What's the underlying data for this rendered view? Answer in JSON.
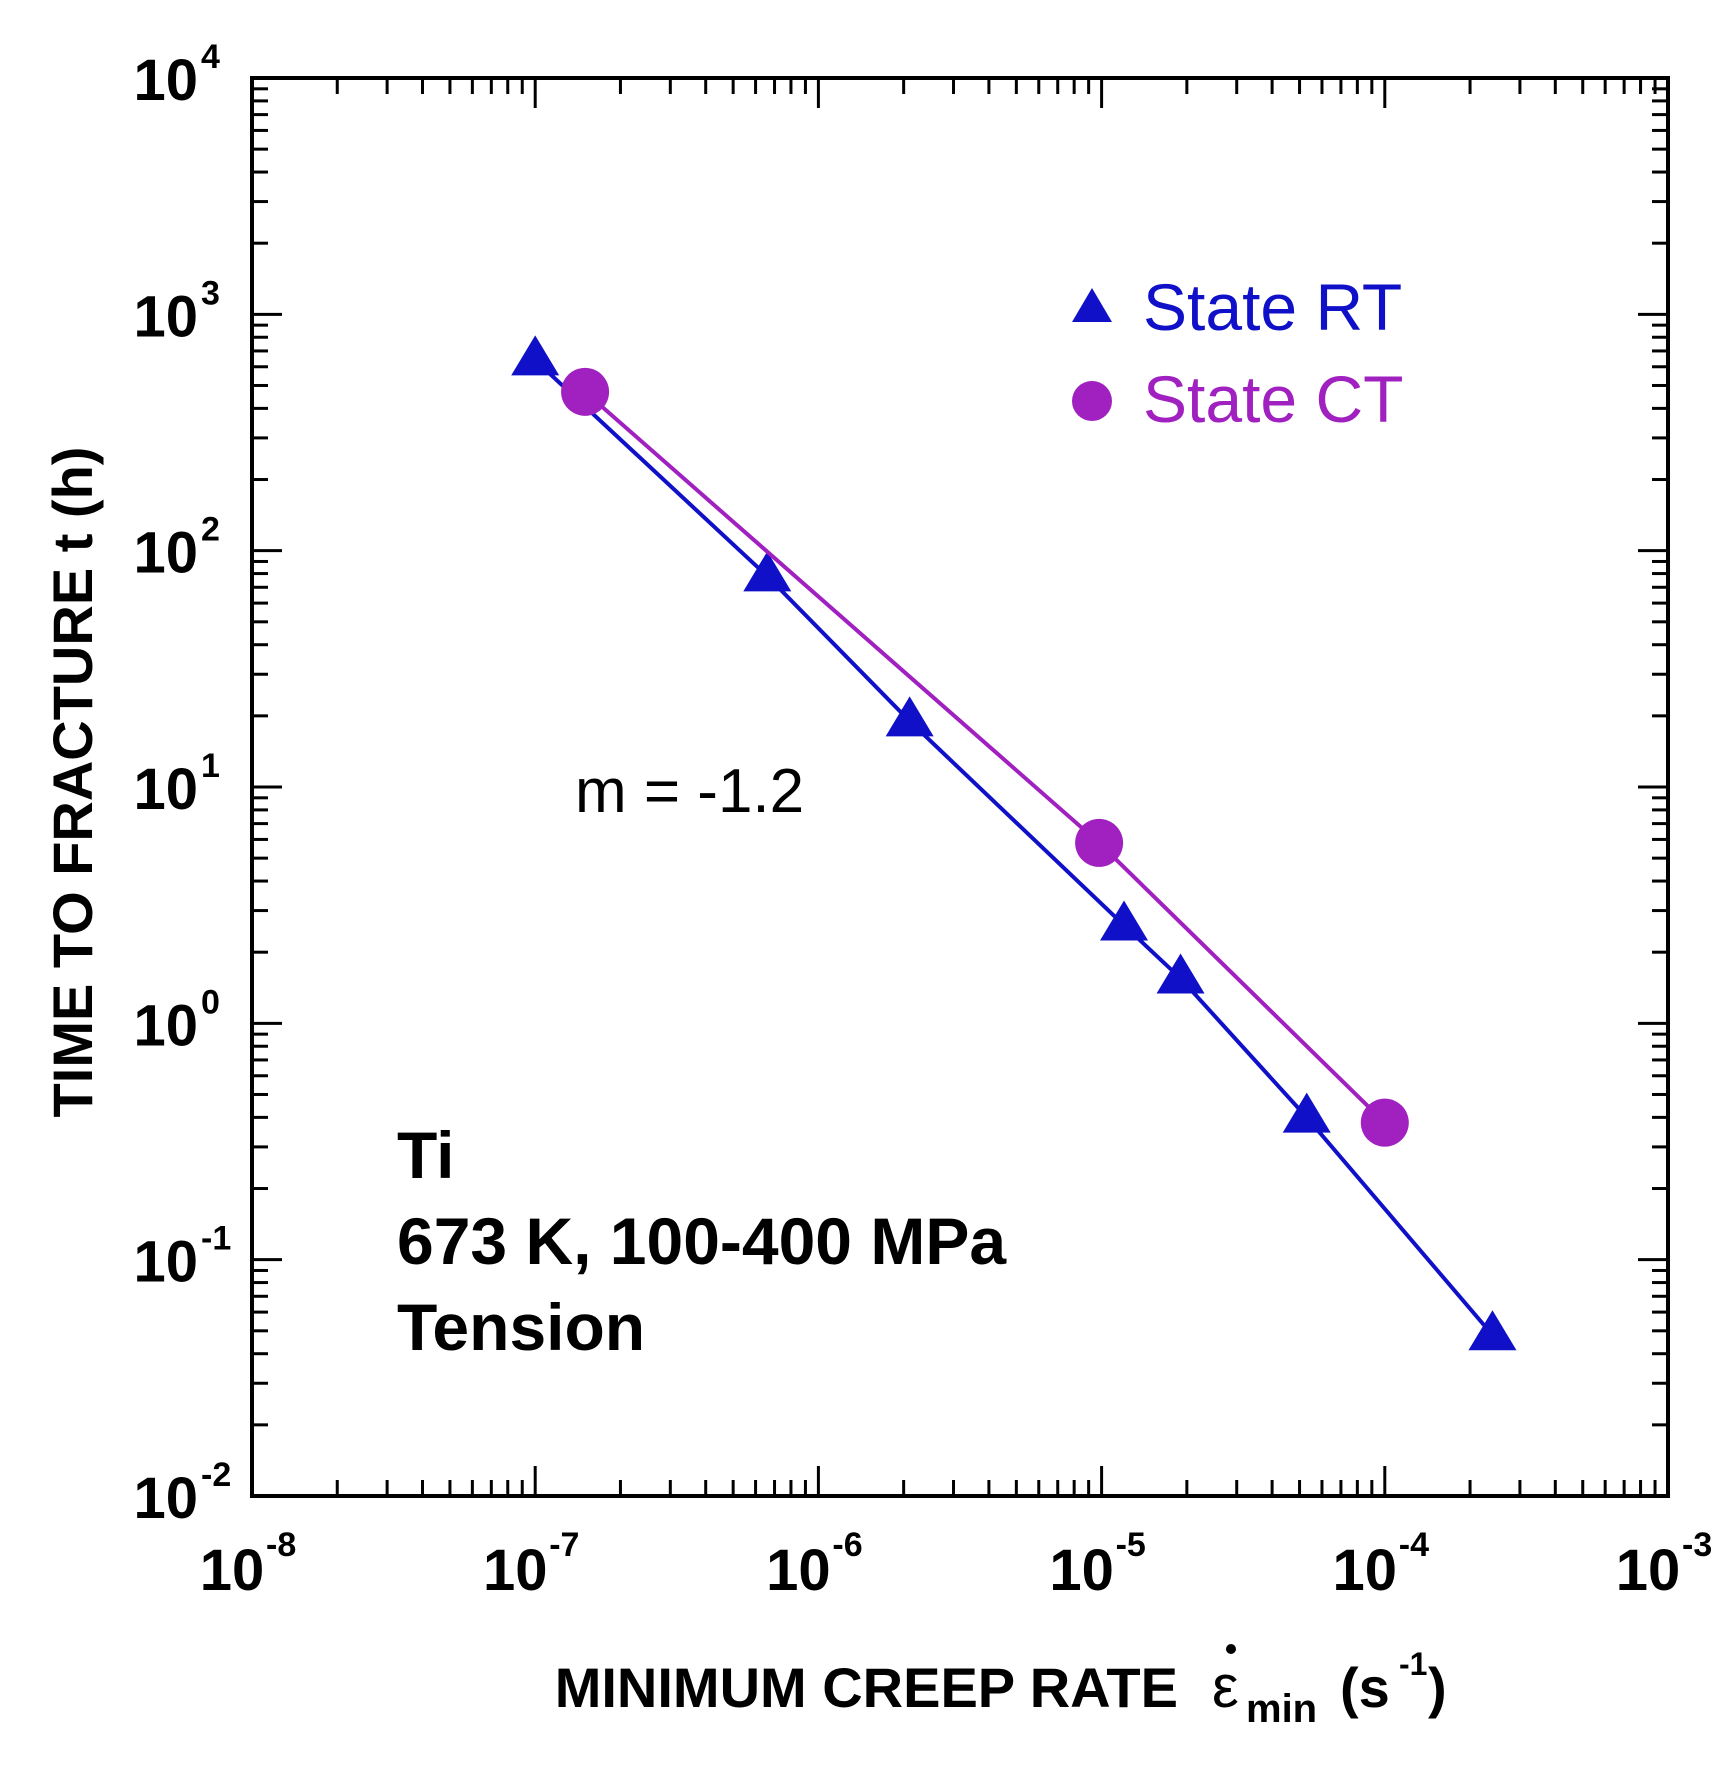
{
  "chart_data": {
    "type": "scatter",
    "title": "",
    "xlabel": "MINIMUM CREEP RATE",
    "xlabel_symbol": "ε",
    "xlabel_sub": "min",
    "xlabel_units": "(s",
    "xlabel_units_exp": "-1",
    "xlabel_units_close": ")",
    "ylabel": "TIME TO FRACTURE t (h)",
    "xscale": "log",
    "yscale": "log",
    "xlim": [
      1e-08,
      0.001
    ],
    "ylim": [
      0.01,
      10000.0
    ],
    "x_ticks": [
      {
        "base": "10",
        "exp": "-8"
      },
      {
        "base": "10",
        "exp": "-7"
      },
      {
        "base": "10",
        "exp": "-6"
      },
      {
        "base": "10",
        "exp": "-5"
      },
      {
        "base": "10",
        "exp": "-4"
      },
      {
        "base": "10",
        "exp": "-3"
      }
    ],
    "y_ticks": [
      {
        "base": "10",
        "exp": "-2"
      },
      {
        "base": "10",
        "exp": "-1"
      },
      {
        "base": "10",
        "exp": "0"
      },
      {
        "base": "10",
        "exp": "1"
      },
      {
        "base": "10",
        "exp": "2"
      },
      {
        "base": "10",
        "exp": "3"
      },
      {
        "base": "10",
        "exp": "4"
      }
    ],
    "legend_position": "top-right",
    "series": [
      {
        "name": "State RT",
        "marker": "triangle",
        "color": "#1010c8",
        "x": [
          1e-07,
          6.6e-07,
          2.1e-06,
          1.2e-05,
          1.9e-05,
          5.3e-05,
          0.00024
        ],
        "y": [
          640,
          78,
          19,
          2.6,
          1.55,
          0.4,
          0.048
        ]
      },
      {
        "name": "State CT",
        "marker": "circle",
        "color": "#a020c0",
        "x": [
          1.5e-07,
          9.8e-06,
          0.0001
        ],
        "y": [
          470,
          5.8,
          0.38
        ]
      }
    ],
    "annotations": {
      "slope": "m = -1.2",
      "material": "Ti",
      "conditions": "673 K, 100-400 MPa",
      "mode": "Tension"
    }
  }
}
